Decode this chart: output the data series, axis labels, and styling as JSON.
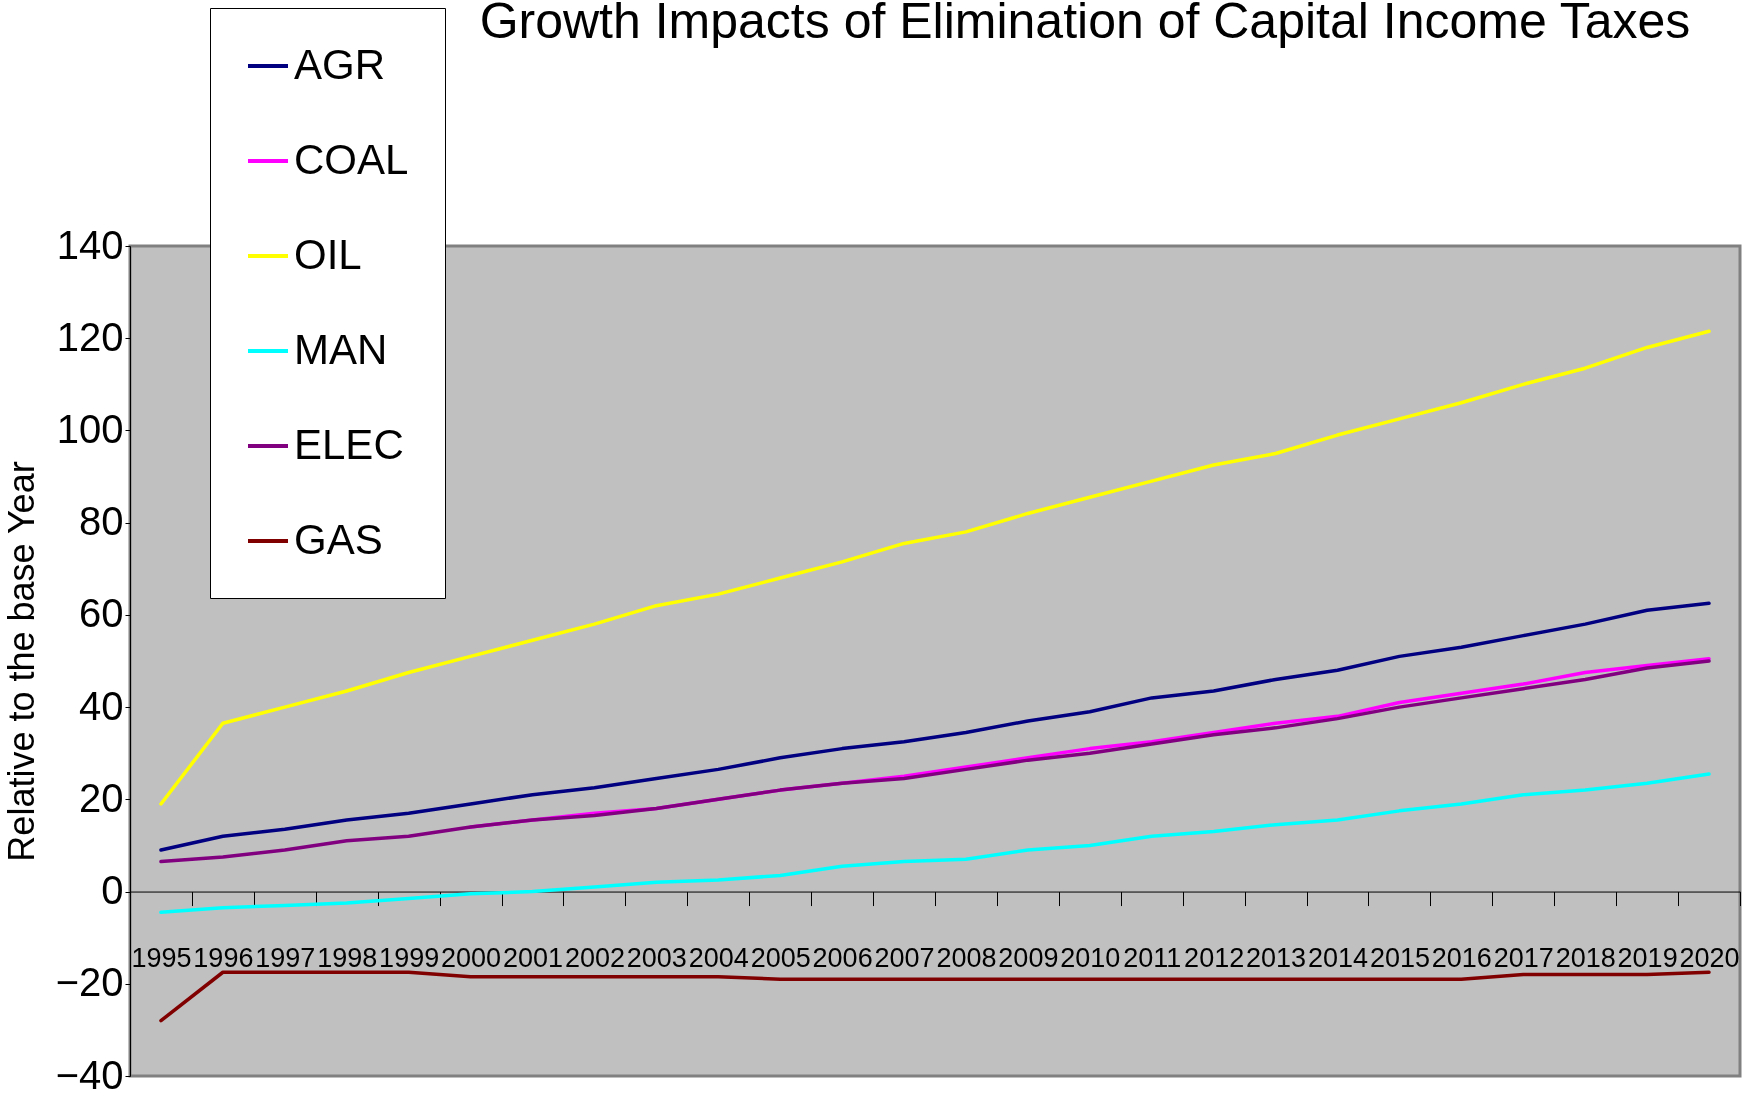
{
  "chart_data": {
    "type": "line",
    "title": "Growth Impacts of Elimination of Capital Income Taxes",
    "ylabel": "Relative to the base Year",
    "categories": [
      "1995",
      "1996",
      "1997",
      "1998",
      "1999",
      "2000",
      "2001",
      "2002",
      "2003",
      "2004",
      "2005",
      "2006",
      "2007",
      "2008",
      "2009",
      "2010",
      "2011",
      "2012",
      "2013",
      "2014",
      "2015",
      "2016",
      "2017",
      "2018",
      "2019",
      "2020"
    ],
    "series": [
      {
        "name": "AGR",
        "color": "#000080",
        "values": [
          9,
          12,
          13.5,
          15.5,
          17,
          19,
          21,
          22.5,
          24.5,
          26.5,
          29,
          31,
          32.5,
          34.5,
          37,
          39,
          42,
          43.5,
          46,
          48,
          51,
          53,
          55.5,
          58,
          61,
          62.5
        ]
      },
      {
        "name": "COAL",
        "color": "#ff00ff",
        "values": [
          null,
          null,
          null,
          null,
          null,
          14,
          15.5,
          17,
          18,
          20,
          22,
          23.5,
          25,
          27,
          29,
          31,
          32.5,
          34.5,
          36.5,
          38,
          41,
          43,
          45,
          47.5,
          49,
          50.5
        ]
      },
      {
        "name": "OIL",
        "color": "#ffff00",
        "values": [
          19,
          36.5,
          40,
          43.5,
          47.5,
          51,
          54.5,
          58,
          62,
          64.5,
          68,
          71.5,
          75.5,
          78,
          82,
          85.5,
          89,
          92.5,
          95,
          99,
          102.5,
          106,
          110,
          113.5,
          118,
          121.5
        ]
      },
      {
        "name": "MAN",
        "color": "#00ffff",
        "values": [
          -4.5,
          -3.5,
          -3,
          -2.5,
          -1.5,
          -0.5,
          0,
          1,
          2,
          2.5,
          3.5,
          5.5,
          6.5,
          7,
          9,
          10,
          12,
          13,
          14.5,
          15.5,
          17.5,
          19,
          21,
          22,
          23.5,
          25.5
        ]
      },
      {
        "name": "ELEC",
        "color": "#800080",
        "values": [
          6.5,
          7.5,
          9,
          11,
          12,
          14,
          15.5,
          16.5,
          18,
          20,
          22,
          23.5,
          24.5,
          26.5,
          28.5,
          30,
          32,
          34,
          35.5,
          37.5,
          40,
          42,
          44,
          46,
          48.5,
          50
        ]
      },
      {
        "name": "GAS",
        "color": "#800000",
        "values": [
          -28,
          -17.5,
          -17.5,
          -17.5,
          -17.5,
          -18.5,
          -18.5,
          -18.5,
          -18.5,
          -18.5,
          -19,
          -19,
          -19,
          -19,
          -19,
          -19,
          -19,
          -19,
          -19,
          -19,
          -19,
          -19,
          -18,
          -18,
          -18,
          -17.5
        ]
      }
    ],
    "ylim": [
      -40,
      140
    ],
    "yticks": [
      -40,
      -20,
      0,
      20,
      40,
      60,
      80,
      100,
      120,
      140
    ],
    "grid": false,
    "legend": "top left"
  }
}
